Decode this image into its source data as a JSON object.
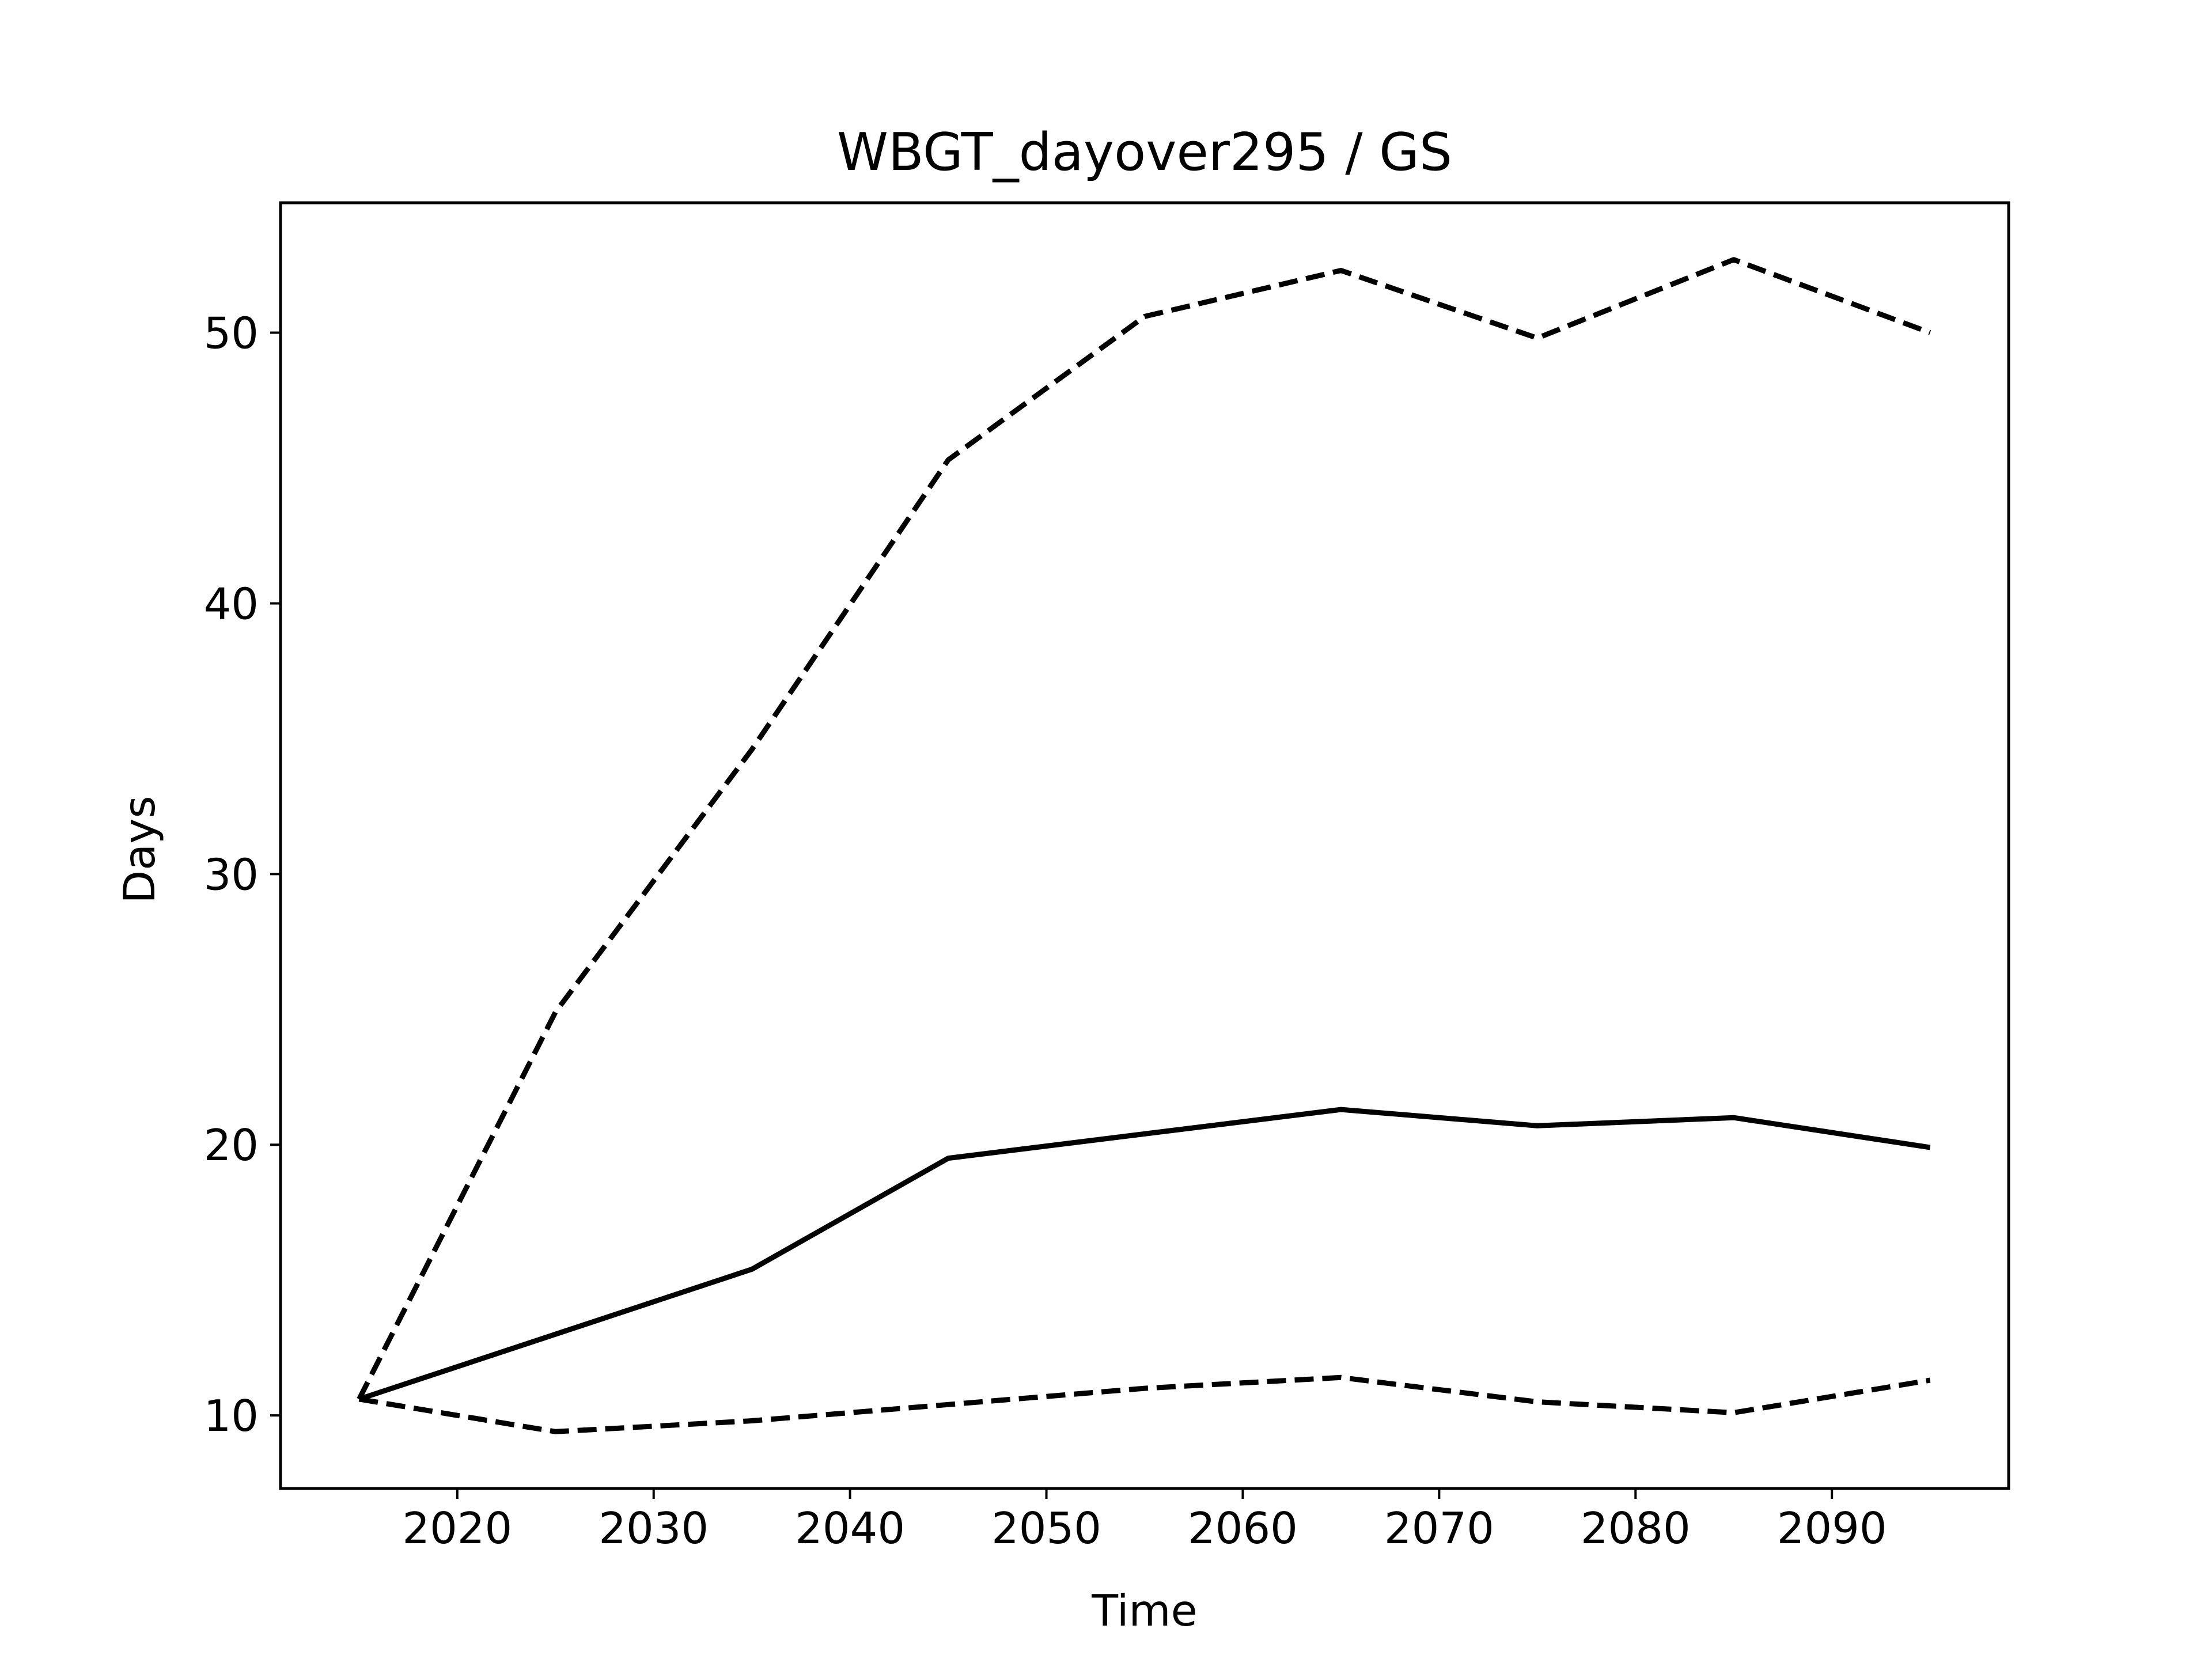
{
  "chart_data": {
    "type": "line",
    "title": "WBGT_dayover295 / GS",
    "xlabel": "Time",
    "ylabel": "Days",
    "xlim": [
      2011,
      2099
    ],
    "ylim": [
      7.3,
      54.8
    ],
    "xticks": [
      2020,
      2030,
      2040,
      2050,
      2060,
      2070,
      2080,
      2090
    ],
    "yticks": [
      10,
      20,
      30,
      40,
      50
    ],
    "grid": false,
    "legend": "none",
    "x": [
      2015,
      2025,
      2035,
      2045,
      2055,
      2065,
      2075,
      2085,
      2095
    ],
    "series": [
      {
        "style": "solid",
        "color": "#000000",
        "values": [
          10.6,
          13.0,
          15.4,
          19.5,
          20.4,
          21.3,
          20.7,
          21.0,
          19.9
        ]
      },
      {
        "style": "dashed",
        "color": "#000000",
        "values": [
          10.6,
          24.9,
          34.6,
          45.3,
          50.6,
          52.3,
          49.8,
          52.7,
          50.0
        ]
      },
      {
        "style": "dashed",
        "color": "#000000",
        "values": [
          10.6,
          9.4,
          9.8,
          10.4,
          11.0,
          11.4,
          10.5,
          10.1,
          11.3
        ]
      }
    ]
  }
}
